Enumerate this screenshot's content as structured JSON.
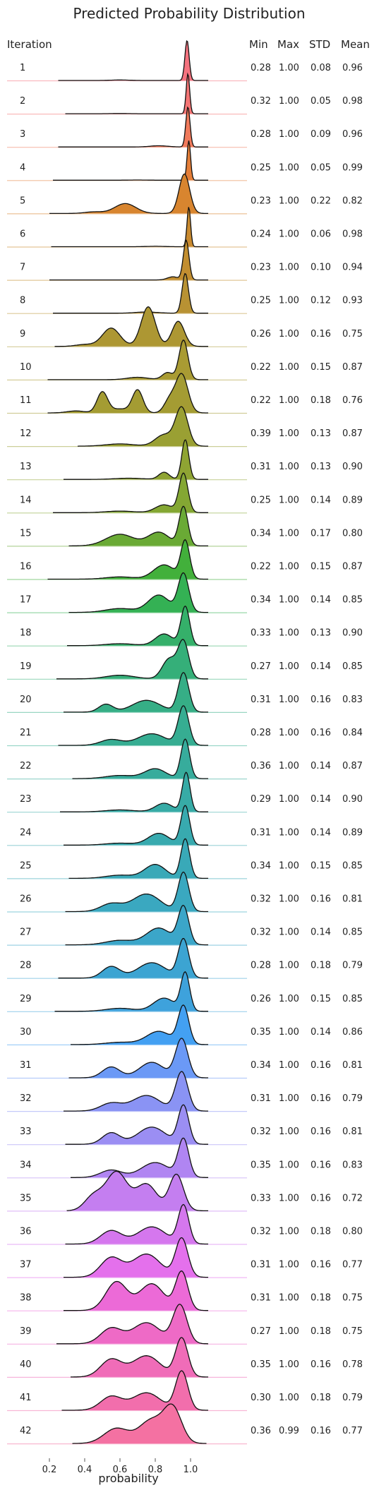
{
  "chart_data": {
    "type": "ridgeline",
    "title": "Predicted Probability Distribution",
    "xlabel": "probability",
    "row_header": "Iteration",
    "stat_headers": [
      "Min",
      "Max",
      "STD",
      "Mean"
    ],
    "xlim": [
      0.12,
      1.2
    ],
    "xticks": [
      0.2,
      0.4,
      0.6,
      0.8,
      1.0
    ],
    "xtick_labels": [
      "0.2",
      "0.4",
      "0.6",
      "0.8",
      "1.0"
    ],
    "series": [
      {
        "iteration": "1",
        "min": "0.28",
        "max": "1.00",
        "std": "0.08",
        "mean": "0.96",
        "color": "#f5737f",
        "kde": [
          [
            0.98,
            0.012,
            1.0
          ],
          [
            0.6,
            0.05,
            0.012
          ]
        ]
      },
      {
        "iteration": "2",
        "min": "0.32",
        "max": "1.00",
        "std": "0.05",
        "mean": "0.98",
        "color": "#f47575",
        "kde": [
          [
            0.985,
            0.01,
            1.0
          ],
          [
            0.6,
            0.05,
            0.006
          ]
        ]
      },
      {
        "iteration": "3",
        "min": "0.28",
        "max": "1.00",
        "std": "0.09",
        "mean": "0.96",
        "color": "#f07a5b",
        "kde": [
          [
            0.985,
            0.012,
            1.0
          ],
          [
            0.82,
            0.05,
            0.03
          ]
        ]
      },
      {
        "iteration": "4",
        "min": "0.25",
        "max": "1.00",
        "std": "0.05",
        "mean": "0.99",
        "color": "#e47e38",
        "kde": [
          [
            0.99,
            0.01,
            1.0
          ],
          [
            0.7,
            0.05,
            0.005
          ]
        ]
      },
      {
        "iteration": "5",
        "min": "0.23",
        "max": "1.00",
        "std": "0.22",
        "mean": "0.82",
        "color": "#d8852f",
        "kde": [
          [
            0.965,
            0.03,
            1.0
          ],
          [
            0.63,
            0.06,
            0.25
          ],
          [
            0.45,
            0.05,
            0.04
          ]
        ]
      },
      {
        "iteration": "6",
        "min": "0.24",
        "max": "1.00",
        "std": "0.06",
        "mean": "0.98",
        "color": "#c98a2f",
        "kde": [
          [
            0.99,
            0.01,
            1.0
          ],
          [
            0.8,
            0.05,
            0.01
          ]
        ]
      },
      {
        "iteration": "7",
        "min": "0.23",
        "max": "1.00",
        "std": "0.10",
        "mean": "0.94",
        "color": "#c28e30",
        "kde": [
          [
            0.975,
            0.016,
            1.0
          ],
          [
            0.9,
            0.03,
            0.08
          ]
        ]
      },
      {
        "iteration": "8",
        "min": "0.25",
        "max": "1.00",
        "std": "0.12",
        "mean": "0.93",
        "color": "#b89233",
        "kde": [
          [
            0.97,
            0.018,
            1.0
          ],
          [
            0.75,
            0.06,
            0.03
          ]
        ]
      },
      {
        "iteration": "9",
        "min": "0.26",
        "max": "1.00",
        "std": "0.16",
        "mean": "0.75",
        "color": "#ad9733",
        "kde": [
          [
            0.93,
            0.035,
            0.52
          ],
          [
            0.76,
            0.04,
            0.82
          ],
          [
            0.55,
            0.05,
            0.38
          ],
          [
            0.4,
            0.05,
            0.04
          ]
        ]
      },
      {
        "iteration": "10",
        "min": "0.22",
        "max": "1.00",
        "std": "0.15",
        "mean": "0.87",
        "color": "#a99b33",
        "kde": [
          [
            0.96,
            0.025,
            1.0
          ],
          [
            0.87,
            0.03,
            0.18
          ],
          [
            0.7,
            0.06,
            0.06
          ]
        ]
      },
      {
        "iteration": "11",
        "min": "0.22",
        "max": "1.00",
        "std": "0.18",
        "mean": "0.76",
        "color": "#a49c33",
        "kde": [
          [
            0.95,
            0.035,
            0.78
          ],
          [
            0.88,
            0.03,
            0.25
          ],
          [
            0.7,
            0.03,
            0.46
          ],
          [
            0.5,
            0.03,
            0.42
          ],
          [
            0.6,
            0.05,
            0.08
          ],
          [
            0.35,
            0.05,
            0.04
          ]
        ]
      },
      {
        "iteration": "12",
        "min": "0.39",
        "max": "1.00",
        "std": "0.13",
        "mean": "0.87",
        "color": "#9aa033",
        "kde": [
          [
            0.95,
            0.035,
            1.0
          ],
          [
            0.85,
            0.05,
            0.3
          ],
          [
            0.6,
            0.08,
            0.06
          ]
        ]
      },
      {
        "iteration": "13",
        "min": "0.31",
        "max": "1.00",
        "std": "0.13",
        "mean": "0.90",
        "color": "#8fa433",
        "kde": [
          [
            0.97,
            0.02,
            1.0
          ],
          [
            0.85,
            0.03,
            0.18
          ],
          [
            0.65,
            0.08,
            0.03
          ]
        ]
      },
      {
        "iteration": "14",
        "min": "0.25",
        "max": "1.00",
        "std": "0.14",
        "mean": "0.89",
        "color": "#84a733",
        "kde": [
          [
            0.96,
            0.025,
            1.0
          ],
          [
            0.85,
            0.05,
            0.2
          ],
          [
            0.6,
            0.08,
            0.04
          ]
        ]
      },
      {
        "iteration": "15",
        "min": "0.34",
        "max": "1.00",
        "std": "0.17",
        "mean": "0.80",
        "color": "#6aaa35",
        "kde": [
          [
            0.96,
            0.025,
            1.0
          ],
          [
            0.82,
            0.06,
            0.35
          ],
          [
            0.6,
            0.08,
            0.3
          ]
        ]
      },
      {
        "iteration": "16",
        "min": "0.22",
        "max": "1.00",
        "std": "0.15",
        "mean": "0.87",
        "color": "#42b03b",
        "kde": [
          [
            0.97,
            0.025,
            1.0
          ],
          [
            0.85,
            0.06,
            0.38
          ],
          [
            0.6,
            0.08,
            0.06
          ]
        ]
      },
      {
        "iteration": "17",
        "min": "0.34",
        "max": "1.00",
        "std": "0.14",
        "mean": "0.85",
        "color": "#34b154",
        "kde": [
          [
            0.96,
            0.03,
            1.0
          ],
          [
            0.82,
            0.06,
            0.45
          ],
          [
            0.6,
            0.08,
            0.1
          ]
        ]
      },
      {
        "iteration": "18",
        "min": "0.33",
        "max": "1.00",
        "std": "0.13",
        "mean": "0.90",
        "color": "#35b06a",
        "kde": [
          [
            0.97,
            0.025,
            1.0
          ],
          [
            0.85,
            0.05,
            0.3
          ],
          [
            0.6,
            0.08,
            0.05
          ]
        ]
      },
      {
        "iteration": "19",
        "min": "0.27",
        "max": "1.00",
        "std": "0.14",
        "mean": "0.85",
        "color": "#35af79",
        "kde": [
          [
            0.96,
            0.03,
            1.0
          ],
          [
            0.88,
            0.04,
            0.55
          ],
          [
            0.6,
            0.08,
            0.1
          ]
        ]
      },
      {
        "iteration": "20",
        "min": "0.31",
        "max": "1.00",
        "std": "0.16",
        "mean": "0.83",
        "color": "#36ae86",
        "kde": [
          [
            0.96,
            0.03,
            1.0
          ],
          [
            0.75,
            0.08,
            0.3
          ],
          [
            0.52,
            0.04,
            0.2
          ]
        ]
      },
      {
        "iteration": "21",
        "min": "0.28",
        "max": "1.00",
        "std": "0.16",
        "mean": "0.84",
        "color": "#36ad92",
        "kde": [
          [
            0.96,
            0.03,
            1.0
          ],
          [
            0.78,
            0.08,
            0.3
          ],
          [
            0.55,
            0.06,
            0.15
          ]
        ]
      },
      {
        "iteration": "22",
        "min": "0.36",
        "max": "1.00",
        "std": "0.14",
        "mean": "0.87",
        "color": "#37ac9c",
        "kde": [
          [
            0.97,
            0.025,
            1.0
          ],
          [
            0.8,
            0.06,
            0.25
          ],
          [
            0.6,
            0.08,
            0.08
          ]
        ]
      },
      {
        "iteration": "23",
        "min": "0.29",
        "max": "1.00",
        "std": "0.14",
        "mean": "0.90",
        "color": "#37aba6",
        "kde": [
          [
            0.975,
            0.022,
            1.0
          ],
          [
            0.85,
            0.05,
            0.22
          ],
          [
            0.6,
            0.08,
            0.05
          ]
        ]
      },
      {
        "iteration": "24",
        "min": "0.31",
        "max": "1.00",
        "std": "0.14",
        "mean": "0.89",
        "color": "#38aaaf",
        "kde": [
          [
            0.97,
            0.025,
            1.0
          ],
          [
            0.82,
            0.06,
            0.3
          ],
          [
            0.6,
            0.08,
            0.05
          ]
        ]
      },
      {
        "iteration": "25",
        "min": "0.34",
        "max": "1.00",
        "std": "0.15",
        "mean": "0.85",
        "color": "#39a9b8",
        "kde": [
          [
            0.97,
            0.025,
            1.0
          ],
          [
            0.8,
            0.06,
            0.35
          ],
          [
            0.6,
            0.08,
            0.08
          ]
        ]
      },
      {
        "iteration": "26",
        "min": "0.32",
        "max": "1.00",
        "std": "0.16",
        "mean": "0.81",
        "color": "#3aa8c0",
        "kde": [
          [
            0.96,
            0.03,
            1.0
          ],
          [
            0.75,
            0.08,
            0.45
          ],
          [
            0.55,
            0.06,
            0.2
          ]
        ]
      },
      {
        "iteration": "27",
        "min": "0.32",
        "max": "1.00",
        "std": "0.14",
        "mean": "0.85",
        "color": "#3ba6c9",
        "kde": [
          [
            0.96,
            0.03,
            1.0
          ],
          [
            0.82,
            0.07,
            0.45
          ],
          [
            0.6,
            0.08,
            0.12
          ]
        ]
      },
      {
        "iteration": "28",
        "min": "0.28",
        "max": "1.00",
        "std": "0.18",
        "mean": "0.79",
        "color": "#3ca4d2",
        "kde": [
          [
            0.96,
            0.03,
            1.0
          ],
          [
            0.78,
            0.08,
            0.4
          ],
          [
            0.55,
            0.05,
            0.3
          ]
        ]
      },
      {
        "iteration": "29",
        "min": "0.26",
        "max": "1.00",
        "std": "0.15",
        "mean": "0.85",
        "color": "#3ea2dc",
        "kde": [
          [
            0.97,
            0.025,
            1.0
          ],
          [
            0.85,
            0.06,
            0.35
          ],
          [
            0.6,
            0.08,
            0.08
          ]
        ]
      },
      {
        "iteration": "30",
        "min": "0.35",
        "max": "1.00",
        "std": "0.14",
        "mean": "0.86",
        "color": "#43a0f2",
        "kde": [
          [
            0.96,
            0.03,
            1.0
          ],
          [
            0.82,
            0.07,
            0.35
          ],
          [
            0.6,
            0.08,
            0.06
          ]
        ]
      },
      {
        "iteration": "31",
        "min": "0.34",
        "max": "1.00",
        "std": "0.16",
        "mean": "0.81",
        "color": "#6b99f6",
        "kde": [
          [
            0.95,
            0.035,
            1.0
          ],
          [
            0.78,
            0.07,
            0.4
          ],
          [
            0.55,
            0.05,
            0.28
          ]
        ]
      },
      {
        "iteration": "32",
        "min": "0.31",
        "max": "1.00",
        "std": "0.16",
        "mean": "0.79",
        "color": "#8a93f4",
        "kde": [
          [
            0.95,
            0.035,
            1.0
          ],
          [
            0.75,
            0.08,
            0.4
          ],
          [
            0.55,
            0.06,
            0.2
          ]
        ]
      },
      {
        "iteration": "33",
        "min": "0.32",
        "max": "1.00",
        "std": "0.16",
        "mean": "0.81",
        "color": "#9b8ef3",
        "kde": [
          [
            0.96,
            0.03,
            1.0
          ],
          [
            0.78,
            0.08,
            0.45
          ],
          [
            0.55,
            0.05,
            0.3
          ]
        ]
      },
      {
        "iteration": "34",
        "min": "0.35",
        "max": "1.00",
        "std": "0.16",
        "mean": "0.83",
        "color": "#b085f2",
        "kde": [
          [
            0.96,
            0.03,
            1.0
          ],
          [
            0.8,
            0.08,
            0.4
          ],
          [
            0.55,
            0.06,
            0.2
          ]
        ]
      },
      {
        "iteration": "35",
        "min": "0.33",
        "max": "1.00",
        "std": "0.16",
        "mean": "0.72",
        "color": "#c47ef0",
        "kde": [
          [
            0.92,
            0.04,
            0.75
          ],
          [
            0.75,
            0.06,
            0.55
          ],
          [
            0.58,
            0.06,
            0.8
          ],
          [
            0.45,
            0.05,
            0.3
          ]
        ]
      },
      {
        "iteration": "36",
        "min": "0.32",
        "max": "1.00",
        "std": "0.18",
        "mean": "0.80",
        "color": "#d577ee",
        "kde": [
          [
            0.96,
            0.03,
            1.0
          ],
          [
            0.78,
            0.08,
            0.45
          ],
          [
            0.55,
            0.06,
            0.35
          ]
        ]
      },
      {
        "iteration": "37",
        "min": "0.31",
        "max": "1.00",
        "std": "0.16",
        "mean": "0.77",
        "color": "#e470ec",
        "kde": [
          [
            0.95,
            0.035,
            1.0
          ],
          [
            0.75,
            0.08,
            0.6
          ],
          [
            0.55,
            0.06,
            0.5
          ]
        ]
      },
      {
        "iteration": "38",
        "min": "0.31",
        "max": "1.00",
        "std": "0.18",
        "mean": "0.75",
        "color": "#ec6ad7",
        "kde": [
          [
            0.95,
            0.035,
            1.0
          ],
          [
            0.78,
            0.07,
            0.7
          ],
          [
            0.58,
            0.06,
            0.75
          ]
        ]
      },
      {
        "iteration": "39",
        "min": "0.27",
        "max": "1.00",
        "std": "0.18",
        "mean": "0.75",
        "color": "#ee6ac6",
        "kde": [
          [
            0.94,
            0.04,
            1.0
          ],
          [
            0.75,
            0.08,
            0.55
          ],
          [
            0.55,
            0.06,
            0.4
          ]
        ]
      },
      {
        "iteration": "40",
        "min": "0.35",
        "max": "1.00",
        "std": "0.16",
        "mean": "0.78",
        "color": "#f06cb8",
        "kde": [
          [
            0.95,
            0.035,
            1.0
          ],
          [
            0.75,
            0.08,
            0.55
          ],
          [
            0.55,
            0.06,
            0.45
          ]
        ]
      },
      {
        "iteration": "41",
        "min": "0.30",
        "max": "1.00",
        "std": "0.18",
        "mean": "0.79",
        "color": "#f26eac",
        "kde": [
          [
            0.95,
            0.035,
            1.0
          ],
          [
            0.75,
            0.08,
            0.45
          ],
          [
            0.55,
            0.06,
            0.35
          ]
        ]
      },
      {
        "iteration": "42",
        "min": "0.36",
        "max": "0.99",
        "std": "0.16",
        "mean": "0.77",
        "color": "#f471a2",
        "kde": [
          [
            0.9,
            0.05,
            1.0
          ],
          [
            0.78,
            0.07,
            0.7
          ],
          [
            0.58,
            0.07,
            0.45
          ]
        ]
      }
    ]
  }
}
